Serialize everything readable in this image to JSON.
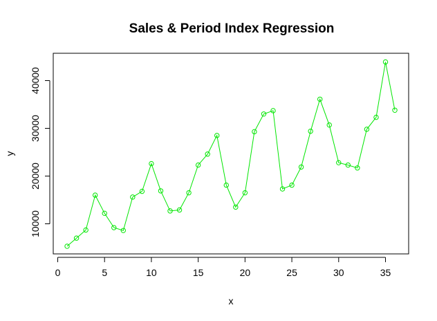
{
  "chart_data": {
    "type": "line",
    "title": "Sales & Period Index Regression",
    "xlabel": "x",
    "ylabel": "y",
    "xlim": [
      0,
      36
    ],
    "ylim": [
      5000,
      45000
    ],
    "x_ticks": [
      0,
      5,
      10,
      15,
      20,
      25,
      30,
      35
    ],
    "y_ticks": [
      10000,
      20000,
      30000,
      40000
    ],
    "grid": false,
    "legend": "none",
    "series_color": "#00e600",
    "marker": "open-circle",
    "x": [
      1,
      2,
      3,
      4,
      5,
      6,
      7,
      8,
      9,
      10,
      11,
      12,
      13,
      14,
      15,
      16,
      17,
      18,
      19,
      20,
      21,
      22,
      23,
      24,
      25,
      26,
      27,
      28,
      29,
      30,
      31,
      32,
      33,
      34,
      35,
      36
    ],
    "y": [
      5300,
      7000,
      8700,
      16000,
      12200,
      9200,
      8600,
      15600,
      16800,
      22600,
      16900,
      12700,
      12900,
      16500,
      22300,
      24600,
      28500,
      18100,
      13500,
      16500,
      29300,
      33000,
      33700,
      17300,
      18100,
      21900,
      29400,
      36100,
      30700,
      22800,
      22300,
      21700,
      29800,
      32300,
      43900,
      33800
    ]
  }
}
